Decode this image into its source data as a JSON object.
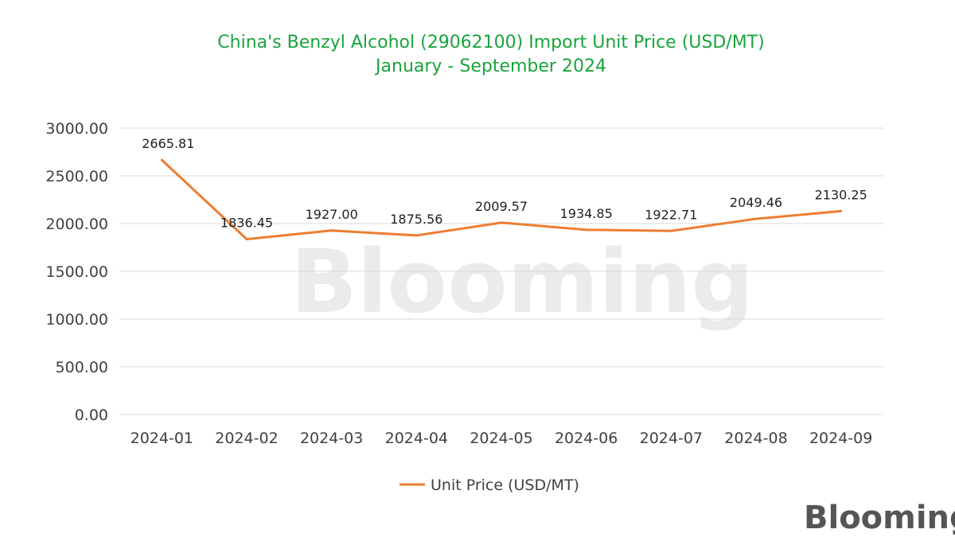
{
  "chart_data": {
    "type": "line",
    "title": "China's Benzyl Alcohol (29062100) Import Unit Price (USD/MT)",
    "subtitle": "January - September 2024",
    "categories": [
      "2024-01",
      "2024-02",
      "2024-03",
      "2024-04",
      "2024-05",
      "2024-06",
      "2024-07",
      "2024-08",
      "2024-09"
    ],
    "series": [
      {
        "name": "Unit Price (USD/MT)",
        "color": "#ed7d31",
        "values": [
          2665.81,
          1836.45,
          1927.0,
          1875.56,
          2009.57,
          1934.85,
          1922.71,
          2049.46,
          2130.25
        ],
        "labels": [
          "2665.81",
          "1836.45",
          "1927.00",
          "1875.56",
          "2009.57",
          "1934.85",
          "1922.71",
          "2049.46",
          "2130.25"
        ]
      }
    ],
    "y_ticks": [
      "0.00",
      "500.00",
      "1000.00",
      "1500.00",
      "2000.00",
      "2500.00",
      "3000.00"
    ],
    "ylim": [
      0,
      3000
    ],
    "grid": true,
    "legend_position": "bottom",
    "xlabel": "",
    "ylabel": ""
  },
  "watermark": "Blooming",
  "logo": {
    "text": "Blooming",
    "accent": "#1aa33c"
  }
}
